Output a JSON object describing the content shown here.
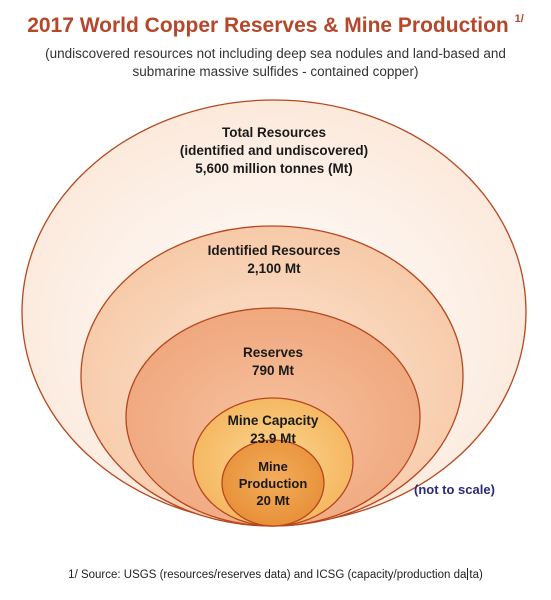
{
  "title": "2017 World Copper Reserves & Mine Production",
  "title_footnote": "1/",
  "subtitle": "(undiscovered resources not including deep sea nodules and land-based and submarine massive sulfides - contained copper)",
  "levels": [
    {
      "name": "Total Resources",
      "detail": "(identified and undiscovered)",
      "value": "5,600 million tonnes (Mt)",
      "color": "#fdf0e6"
    },
    {
      "name": "Identified Resources",
      "value": "2,100 Mt",
      "color": "#f9d4b6"
    },
    {
      "name": "Reserves",
      "value": "790 Mt",
      "color": "#f3b088"
    },
    {
      "name": "Mine Capacity",
      "value": "23.9 Mt",
      "color": "#f7c16a"
    },
    {
      "name": "Mine Production",
      "name_line1": "Mine",
      "name_line2": "Production",
      "value": "20 Mt",
      "color": "#ec9a43"
    }
  ],
  "note": "(not to scale)",
  "footer_before_caret": "1/ Source: USGS (resources/reserves data) and ICSG (capacity/production da",
  "footer_after_caret": "ta)"
}
